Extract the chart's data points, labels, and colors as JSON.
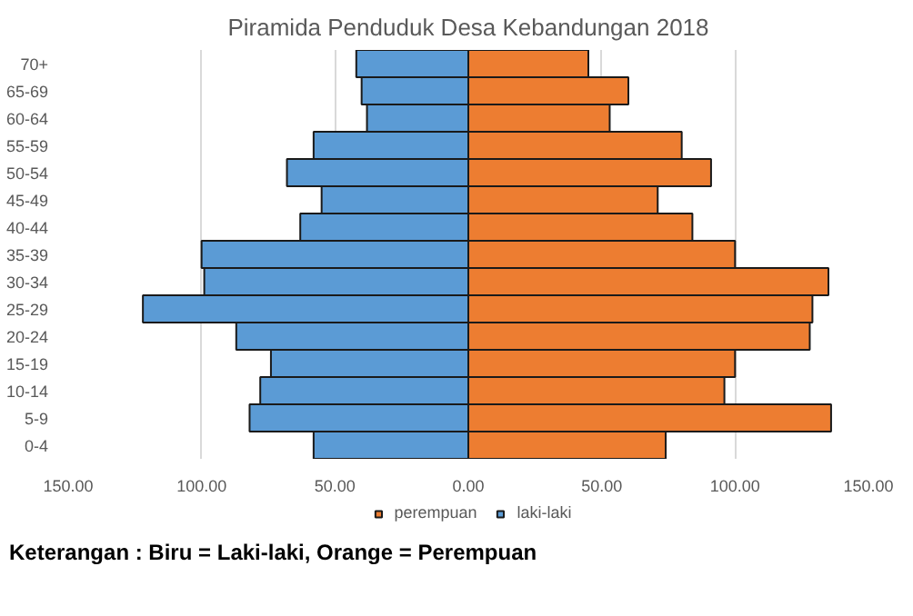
{
  "chart_data": {
    "type": "bar",
    "orientation": "horizontal",
    "stacked": true,
    "title": "Piramida Penduduk Desa Kebandungan 2018",
    "categories": [
      "70+",
      "65-69",
      "60-64",
      "55-59",
      "50-54",
      "45-49",
      "40-44",
      "35-39",
      "30-34",
      "25-29",
      "20-24",
      "15-19",
      "10-14",
      "5-9",
      "0-4"
    ],
    "series": [
      {
        "name": "perempuan",
        "color": "#ed7d31",
        "values": [
          45,
          60,
          53,
          80,
          91,
          71,
          84,
          100,
          135,
          129,
          128,
          100,
          96,
          136,
          74
        ]
      },
      {
        "name": "laki-laki",
        "color": "#5b9bd5",
        "values": [
          -42,
          -40,
          -38,
          -58,
          -68,
          -55,
          -63,
          -100,
          -99,
          -122,
          -87,
          -74,
          -78,
          -82,
          -58
        ]
      }
    ],
    "xlim": [
      -150,
      150
    ],
    "xticks": [
      {
        "value": -150,
        "label": "150.00"
      },
      {
        "value": -100,
        "label": "100.00"
      },
      {
        "value": -50,
        "label": "50.00"
      },
      {
        "value": 0,
        "label": "0.00"
      },
      {
        "value": 50,
        "label": "50.00"
      },
      {
        "value": 100,
        "label": "100.00"
      },
      {
        "value": 150,
        "label": "150.00"
      }
    ],
    "grid": "x",
    "legend": "bottom",
    "annotations": [
      "Keterangan : Biru = Laki-laki, Orange = Perempuan"
    ]
  }
}
